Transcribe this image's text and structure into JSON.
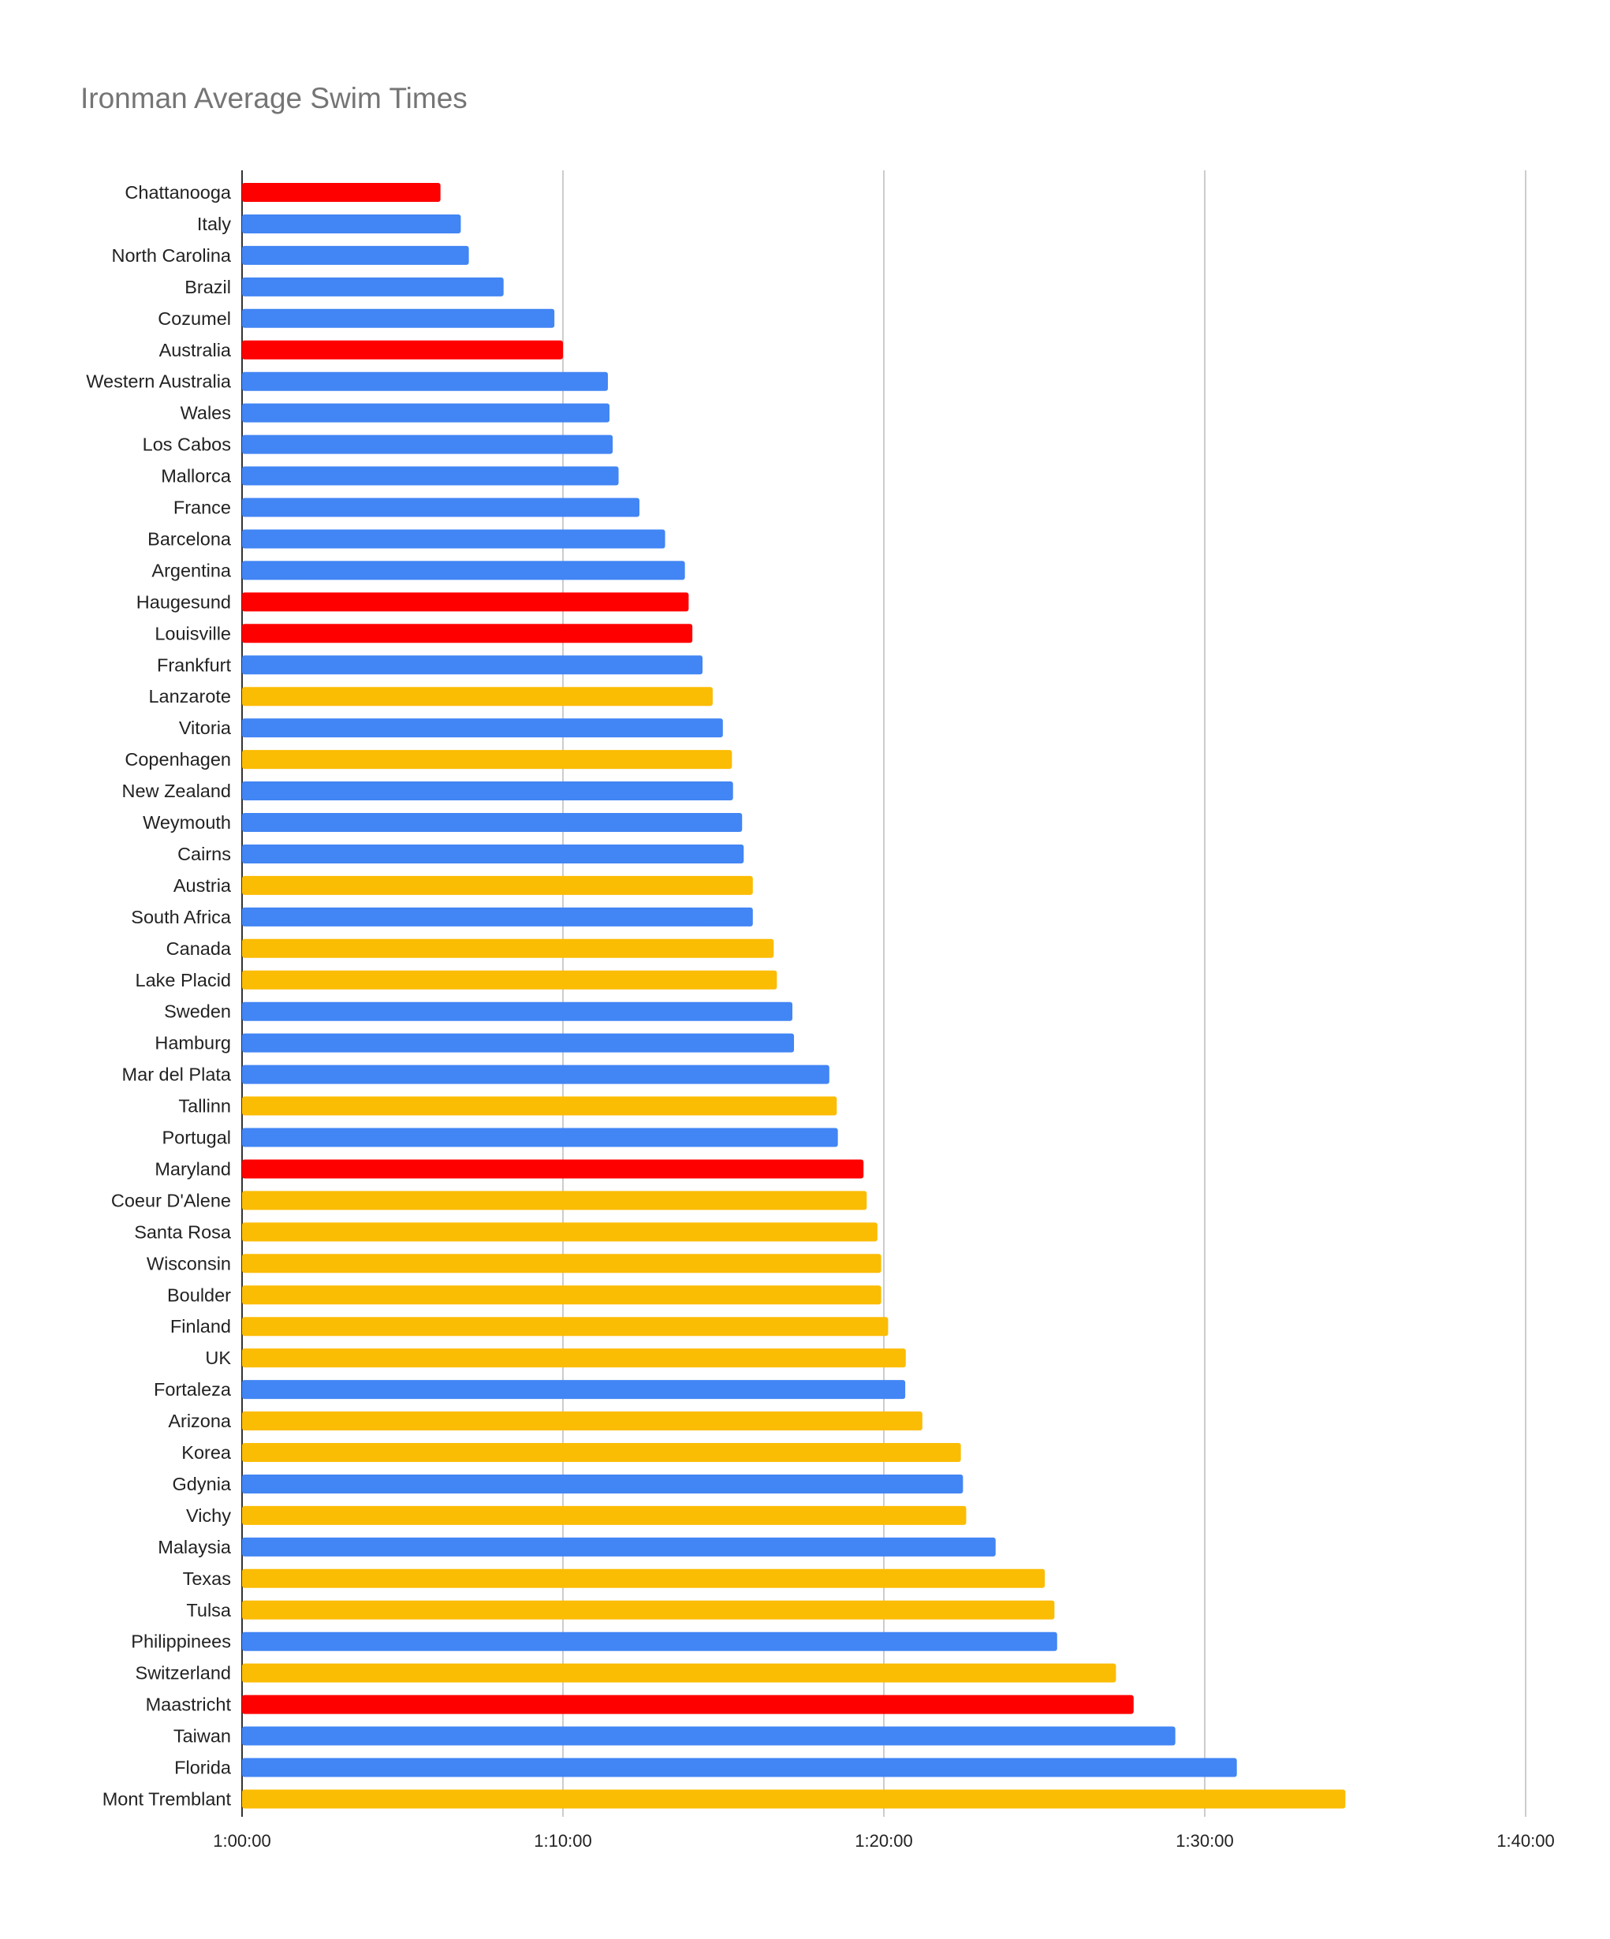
{
  "chart_data": {
    "type": "bar",
    "orientation": "horizontal",
    "title": "Ironman Average Swim Times",
    "xlabel": "",
    "ylabel": "",
    "x_unit": "h:mm:ss",
    "xlim": [
      "1:00:00",
      "1:40:00"
    ],
    "x_ticks": [
      "1:00:00",
      "1:10:00",
      "1:20:00",
      "1:30:00",
      "1:40:00"
    ],
    "grid": true,
    "legend": "none",
    "colors": {
      "red": "#ff0000",
      "blue": "#4285f4",
      "yellow": "#fbbc04"
    },
    "categories": [
      "Chattanooga",
      "Italy",
      "North Carolina",
      "Brazil",
      "Cozumel",
      "Australia",
      "Western Australia",
      "Wales",
      "Los Cabos",
      "Mallorca",
      "France",
      "Barcelona",
      "Argentina",
      "Haugesund",
      "Louisville",
      "Frankfurt",
      "Lanzarote",
      "Vitoria",
      "Copenhagen",
      "New Zealand",
      "Weymouth",
      "Cairns",
      "Austria",
      "South Africa",
      "Canada",
      "Lake Placid",
      "Sweden",
      "Hamburg",
      "Mar del Plata",
      "Tallinn",
      "Portugal",
      "Maryland",
      "Coeur D'Alene",
      "Santa Rosa",
      "Wisconsin",
      "Boulder",
      "Finland",
      "UK",
      "Fortaleza",
      "Arizona",
      "Korea",
      "Gdynia",
      "Vichy",
      "Malaysia",
      "Texas",
      "Tulsa",
      "Philippinees",
      "Switzerland",
      "Maastricht",
      "Taiwan",
      "Florida",
      "Mont Tremblant"
    ],
    "values": [
      "1:06:11",
      "1:06:49",
      "1:07:04",
      "1:08:09",
      "1:09:44",
      "1:10:00",
      "1:11:24",
      "1:11:27",
      "1:11:33",
      "1:11:44",
      "1:12:23",
      "1:13:11",
      "1:13:48",
      "1:13:55",
      "1:14:02",
      "1:14:21",
      "1:14:40",
      "1:14:59",
      "1:15:16",
      "1:15:18",
      "1:15:35",
      "1:15:38",
      "1:15:55",
      "1:15:55",
      "1:16:34",
      "1:16:40",
      "1:17:09",
      "1:17:12",
      "1:18:18",
      "1:18:32",
      "1:18:34",
      "1:19:22",
      "1:19:28",
      "1:19:48",
      "1:19:55",
      "1:19:55",
      "1:20:08",
      "1:20:41",
      "1:20:40",
      "1:21:12",
      "1:22:24",
      "1:22:28",
      "1:22:34",
      "1:23:29",
      "1:25:01",
      "1:25:19",
      "1:25:24",
      "1:27:14",
      "1:27:47",
      "1:29:05",
      "1:31:00",
      "1:34:23"
    ],
    "bar_colors": [
      "red",
      "blue",
      "blue",
      "blue",
      "blue",
      "red",
      "blue",
      "blue",
      "blue",
      "blue",
      "blue",
      "blue",
      "blue",
      "red",
      "red",
      "blue",
      "yellow",
      "blue",
      "yellow",
      "blue",
      "blue",
      "blue",
      "yellow",
      "blue",
      "yellow",
      "yellow",
      "blue",
      "blue",
      "blue",
      "yellow",
      "blue",
      "red",
      "yellow",
      "yellow",
      "yellow",
      "yellow",
      "yellow",
      "yellow",
      "blue",
      "yellow",
      "yellow",
      "blue",
      "yellow",
      "blue",
      "yellow",
      "yellow",
      "blue",
      "yellow",
      "red",
      "blue",
      "blue",
      "yellow"
    ]
  }
}
